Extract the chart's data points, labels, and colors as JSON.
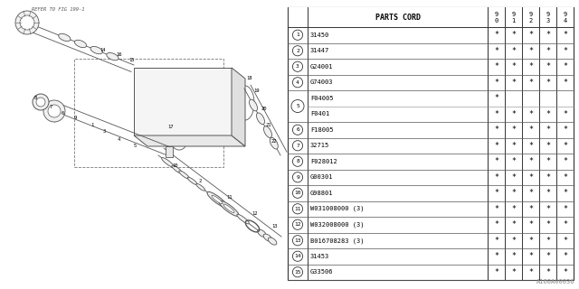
{
  "bg_color": "white",
  "watermark": "A160A00036",
  "refer_text": "REFER TO FIG 199-1",
  "table": {
    "header_col": "PARTS CORD",
    "year_cols": [
      "9\n0",
      "9\n1",
      "9\n2",
      "9\n3",
      "9\n4"
    ],
    "rows": [
      {
        "num": "1",
        "sub": 1,
        "code": "31450",
        "marks": [
          "*",
          "*",
          "*",
          "*",
          "*"
        ]
      },
      {
        "num": "2",
        "sub": 1,
        "code": "31447",
        "marks": [
          "*",
          "*",
          "*",
          "*",
          "*"
        ]
      },
      {
        "num": "3",
        "sub": 1,
        "code": "G24001",
        "marks": [
          "*",
          "*",
          "*",
          "*",
          "*"
        ]
      },
      {
        "num": "4",
        "sub": 1,
        "code": "G74003",
        "marks": [
          "*",
          "*",
          "*",
          "*",
          "*"
        ]
      },
      {
        "num": "5",
        "sub": 2,
        "code": "F04005",
        "marks": [
          "*",
          "",
          "",
          "",
          ""
        ],
        "code2": "F0401",
        "marks2": [
          "*",
          "*",
          "*",
          "*",
          "*"
        ]
      },
      {
        "num": "6",
        "sub": 1,
        "code": "F18005",
        "marks": [
          "*",
          "*",
          "*",
          "*",
          "*"
        ]
      },
      {
        "num": "7",
        "sub": 1,
        "code": "32715",
        "marks": [
          "*",
          "*",
          "*",
          "*",
          "*"
        ]
      },
      {
        "num": "8",
        "sub": 1,
        "code": "F028012",
        "marks": [
          "*",
          "*",
          "*",
          "*",
          "*"
        ]
      },
      {
        "num": "9",
        "sub": 1,
        "code": "G00301",
        "marks": [
          "*",
          "*",
          "*",
          "*",
          "*"
        ]
      },
      {
        "num": "10",
        "sub": 1,
        "code": "G98801",
        "marks": [
          "*",
          "*",
          "*",
          "*",
          "*"
        ]
      },
      {
        "num": "11",
        "sub": 1,
        "code": "W031008000 (3)",
        "marks": [
          "*",
          "*",
          "*",
          "*",
          "*"
        ]
      },
      {
        "num": "12",
        "sub": 1,
        "code": "W032008000 (3)",
        "marks": [
          "*",
          "*",
          "*",
          "*",
          "*"
        ]
      },
      {
        "num": "13",
        "sub": 1,
        "code": "B016708283 (3)",
        "marks": [
          "*",
          "*",
          "*",
          "*",
          "*"
        ]
      },
      {
        "num": "14",
        "sub": 1,
        "code": "31453",
        "marks": [
          "*",
          "*",
          "*",
          "*",
          "*"
        ]
      },
      {
        "num": "15",
        "sub": 1,
        "code": "G33506",
        "marks": [
          "*",
          "*",
          "*",
          "*",
          "*"
        ]
      }
    ]
  }
}
